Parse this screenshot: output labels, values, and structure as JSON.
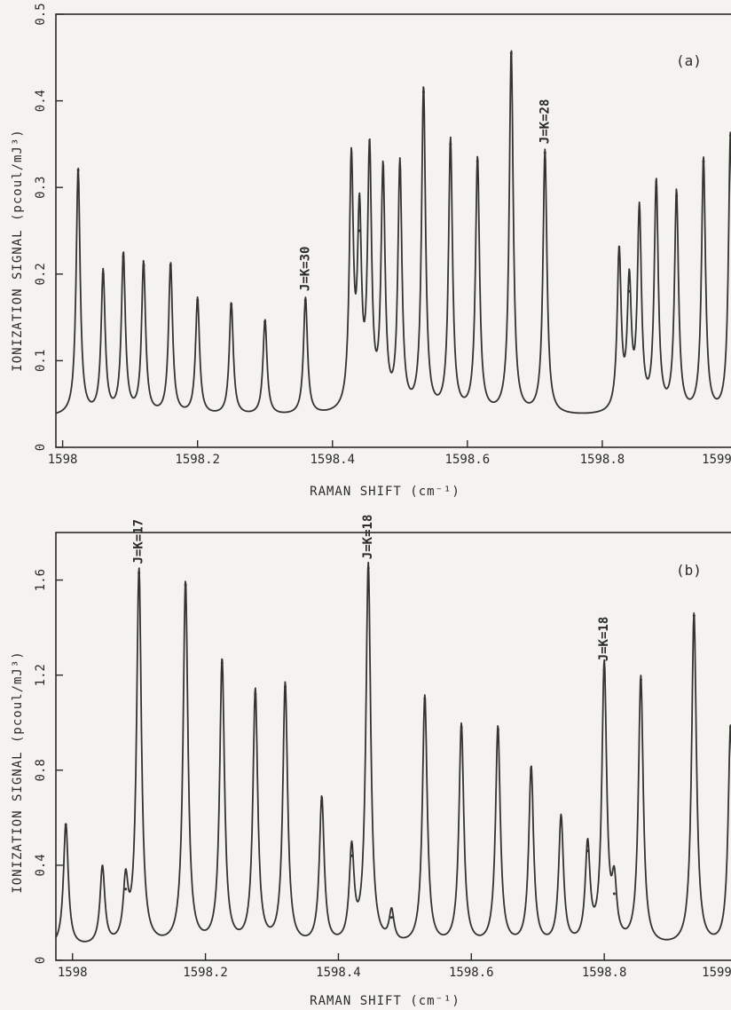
{
  "chart_data": [
    {
      "type": "line",
      "panel_label": "(a)",
      "xlabel": "RAMAN SHIFT (cm⁻¹)",
      "ylabel": "IONIZATION SIGNAL (pcoul/mJ³)",
      "xlim": [
        1597.99,
        1599.0
      ],
      "ylim": [
        0,
        0.5
      ],
      "x_ticks": [
        1598.0,
        1598.2,
        1598.4,
        1598.6,
        1598.8,
        1599.0
      ],
      "x_tick_labels": [
        "1598",
        "1598.2",
        "1598.4",
        "1598.6",
        "1598.8",
        "1599"
      ],
      "y_ticks": [
        0,
        0.1,
        0.2,
        0.3,
        0.4,
        0.5
      ],
      "y_tick_labels": [
        "0",
        "0.1",
        "0.2",
        "0.3",
        "0.4",
        "0.5"
      ],
      "baseline": 0.035,
      "peaks": [
        {
          "x": 1598.023,
          "y": 0.32
        },
        {
          "x": 1598.06,
          "y": 0.2
        },
        {
          "x": 1598.09,
          "y": 0.22
        },
        {
          "x": 1598.12,
          "y": 0.21
        },
        {
          "x": 1598.16,
          "y": 0.21
        },
        {
          "x": 1598.2,
          "y": 0.17
        },
        {
          "x": 1598.25,
          "y": 0.165
        },
        {
          "x": 1598.3,
          "y": 0.145
        },
        {
          "x": 1598.36,
          "y": 0.17
        },
        {
          "x": 1598.428,
          "y": 0.32
        },
        {
          "x": 1598.44,
          "y": 0.25
        },
        {
          "x": 1598.455,
          "y": 0.33
        },
        {
          "x": 1598.475,
          "y": 0.31
        },
        {
          "x": 1598.5,
          "y": 0.32
        },
        {
          "x": 1598.535,
          "y": 0.41
        },
        {
          "x": 1598.575,
          "y": 0.35
        },
        {
          "x": 1598.615,
          "y": 0.33
        },
        {
          "x": 1598.665,
          "y": 0.455
        },
        {
          "x": 1598.715,
          "y": 0.34
        },
        {
          "x": 1598.825,
          "y": 0.22
        },
        {
          "x": 1598.84,
          "y": 0.18
        },
        {
          "x": 1598.855,
          "y": 0.265
        },
        {
          "x": 1598.88,
          "y": 0.3
        },
        {
          "x": 1598.91,
          "y": 0.29
        },
        {
          "x": 1598.95,
          "y": 0.33
        },
        {
          "x": 1598.99,
          "y": 0.36
        }
      ],
      "annotations": [
        {
          "text": "J=K=30",
          "x": 1598.36
        },
        {
          "text": "J=K=28",
          "x": 1598.715
        }
      ]
    },
    {
      "type": "line",
      "panel_label": "(b)",
      "xlabel": "RAMAN SHIFT (cm⁻¹)",
      "ylabel": "IONIZATION SIGNAL (pcoul/mJ³)",
      "xlim": [
        1597.975,
        1599.0
      ],
      "ylim": [
        0,
        1.8
      ],
      "x_ticks": [
        1598.0,
        1598.2,
        1598.4,
        1598.6,
        1598.8,
        1599.0
      ],
      "x_tick_labels": [
        "1598",
        "1598.2",
        "1598.4",
        "1598.6",
        "1598.8",
        "1599"
      ],
      "y_ticks": [
        0,
        0.4,
        0.8,
        1.2,
        1.6
      ],
      "y_tick_labels": [
        "0",
        "0.4",
        "0.8",
        "1.2",
        "1.6"
      ],
      "baseline": 0.05,
      "peaks": [
        {
          "x": 1597.99,
          "y": 0.57
        },
        {
          "x": 1598.045,
          "y": 0.38
        },
        {
          "x": 1598.08,
          "y": 0.3
        },
        {
          "x": 1598.1,
          "y": 1.63
        },
        {
          "x": 1598.17,
          "y": 1.58
        },
        {
          "x": 1598.225,
          "y": 1.25
        },
        {
          "x": 1598.275,
          "y": 1.12
        },
        {
          "x": 1598.32,
          "y": 1.15
        },
        {
          "x": 1598.375,
          "y": 0.67
        },
        {
          "x": 1598.42,
          "y": 0.44
        },
        {
          "x": 1598.445,
          "y": 1.65
        },
        {
          "x": 1598.48,
          "y": 0.18
        },
        {
          "x": 1598.53,
          "y": 1.1
        },
        {
          "x": 1598.585,
          "y": 0.98
        },
        {
          "x": 1598.64,
          "y": 0.97
        },
        {
          "x": 1598.69,
          "y": 0.8
        },
        {
          "x": 1598.735,
          "y": 0.59
        },
        {
          "x": 1598.775,
          "y": 0.46
        },
        {
          "x": 1598.8,
          "y": 1.22
        },
        {
          "x": 1598.815,
          "y": 0.28
        },
        {
          "x": 1598.855,
          "y": 1.18
        },
        {
          "x": 1598.935,
          "y": 1.45
        },
        {
          "x": 1598.99,
          "y": 0.98
        }
      ],
      "annotations": [
        {
          "text": "J=K=17",
          "x": 1598.1
        },
        {
          "text": "J=K=18",
          "x": 1598.445
        },
        {
          "text": "J=K=18",
          "x": 1598.8
        }
      ]
    }
  ]
}
